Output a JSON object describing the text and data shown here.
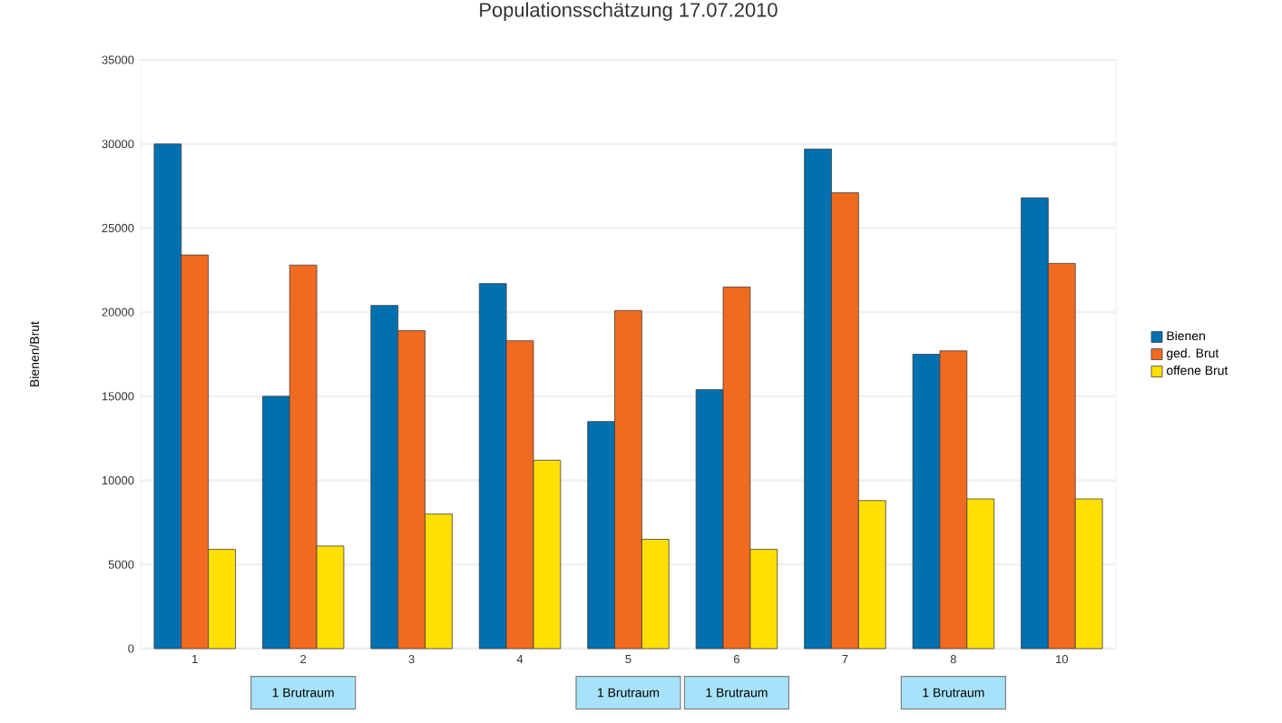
{
  "chart_data": {
    "type": "bar",
    "title": "Populationsschätzung 17.07.2010",
    "ylabel": "Bienen/Brut",
    "categories": [
      "1",
      "2",
      "3",
      "4",
      "5",
      "6",
      "7",
      "8",
      "10"
    ],
    "series": [
      {
        "name": "Bienen",
        "color": "#0070b0",
        "values": [
          30000,
          15000,
          20400,
          21700,
          13500,
          15400,
          29700,
          17500,
          26800
        ]
      },
      {
        "name": "ged. Brut",
        "color": "#f06a20",
        "values": [
          23400,
          22800,
          18900,
          18300,
          20100,
          21500,
          27100,
          17700,
          22900
        ]
      },
      {
        "name": "offene Brut",
        "color": "#ffe000",
        "values": [
          5900,
          6100,
          8000,
          11200,
          6500,
          5900,
          8800,
          8900,
          8900
        ]
      }
    ],
    "ylim": [
      0,
      35000
    ],
    "yticks": [
      0,
      5000,
      10000,
      15000,
      20000,
      25000,
      30000,
      35000
    ],
    "grid": "y",
    "legend": "right",
    "annotations": [
      "1 Brutraum",
      "1 Brutraum",
      "1 Brutraum",
      "1 Brutraum"
    ]
  }
}
